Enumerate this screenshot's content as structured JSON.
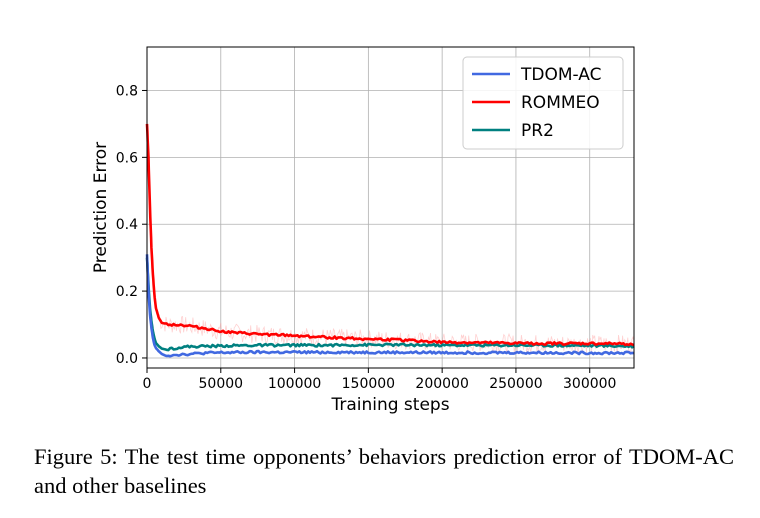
{
  "chart_data": {
    "type": "line",
    "xlabel": "Training steps",
    "ylabel": "Prediction Error",
    "xlim": [
      0,
      330000
    ],
    "ylim": [
      -0.03,
      0.93
    ],
    "xticks": [
      0,
      50000,
      100000,
      150000,
      200000,
      250000,
      300000
    ],
    "yticks": [
      0.0,
      0.2,
      0.4,
      0.6,
      0.8
    ],
    "xtick_labels": [
      "0",
      "50000",
      "100000",
      "150000",
      "200000",
      "250000",
      "300000"
    ],
    "ytick_labels": [
      "0.0",
      "0.2",
      "0.4",
      "0.6",
      "0.8"
    ],
    "grid": true,
    "legend_position": "top-right",
    "series": [
      {
        "name": "TDOM-AC",
        "color": "#4169e1",
        "x": [
          0,
          1000,
          2000,
          3000,
          4000,
          5000,
          6000,
          8000,
          10000,
          12000,
          15000,
          20000,
          30000,
          40000,
          50000,
          70000,
          100000,
          150000,
          200000,
          250000,
          300000,
          330000
        ],
        "y": [
          0.31,
          0.2,
          0.13,
          0.09,
          0.06,
          0.04,
          0.03,
          0.02,
          0.012,
          0.008,
          0.008,
          0.01,
          0.012,
          0.015,
          0.016,
          0.017,
          0.017,
          0.017,
          0.016,
          0.016,
          0.015,
          0.015
        ]
      },
      {
        "name": "ROMMEO",
        "color": "#ff0000",
        "x": [
          0,
          1000,
          2000,
          3000,
          4000,
          5000,
          6000,
          8000,
          10000,
          15000,
          20000,
          30000,
          40000,
          50000,
          60000,
          80000,
          100000,
          120000,
          150000,
          180000,
          200000,
          230000,
          250000,
          280000,
          300000,
          330000
        ],
        "y": [
          0.7,
          0.6,
          0.45,
          0.33,
          0.25,
          0.19,
          0.15,
          0.12,
          0.105,
          0.1,
          0.1,
          0.095,
          0.088,
          0.08,
          0.075,
          0.07,
          0.067,
          0.062,
          0.057,
          0.052,
          0.047,
          0.045,
          0.044,
          0.043,
          0.043,
          0.042
        ]
      },
      {
        "name": "PR2",
        "color": "#008080",
        "x": [
          0,
          1000,
          2000,
          3000,
          4000,
          5000,
          6000,
          8000,
          10000,
          12000,
          15000,
          20000,
          25000,
          30000,
          40000,
          50000,
          60000,
          80000,
          100000,
          120000,
          150000,
          180000,
          200000,
          250000,
          300000,
          330000
        ],
        "y": [
          0.3,
          0.22,
          0.15,
          0.11,
          0.08,
          0.06,
          0.045,
          0.035,
          0.028,
          0.026,
          0.027,
          0.03,
          0.033,
          0.034,
          0.035,
          0.036,
          0.037,
          0.038,
          0.038,
          0.038,
          0.039,
          0.039,
          0.038,
          0.038,
          0.037,
          0.035
        ]
      }
    ]
  },
  "caption": {
    "text": "Figure 5:  The test time opponents’ behaviors prediction error of TDOM-AC and other baselines"
  }
}
